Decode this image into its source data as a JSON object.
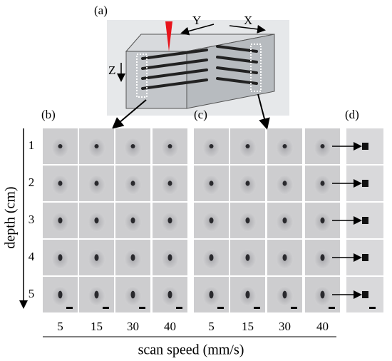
{
  "panel_labels": [
    "(a)",
    "(b)",
    "(c)",
    "(d)"
  ],
  "axes": {
    "x": "X",
    "y": "Y",
    "z": "Z"
  },
  "depth_labels": [
    "1",
    "2",
    "3",
    "4",
    "5"
  ],
  "depth_title": "depth (cm)",
  "speed_labels_b": [
    "5",
    "15",
    "30",
    "40"
  ],
  "speed_labels_c": [
    "5",
    "15",
    "30",
    "40"
  ],
  "speed_title": "scan speed (mm/s)"
}
